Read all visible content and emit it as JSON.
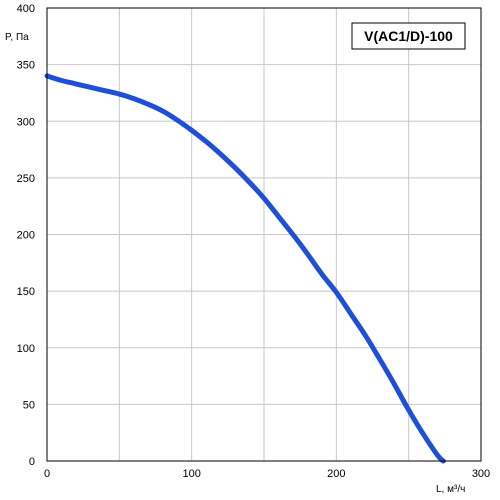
{
  "chart_data": {
    "type": "line",
    "title": "V(AC1/D)-100",
    "xlabel": "L, м³/ч",
    "ylabel": "P, Па",
    "xlim": [
      0,
      300
    ],
    "ylim": [
      0,
      400
    ],
    "x_ticks": [
      "0",
      "100",
      "200",
      "300"
    ],
    "y_ticks": [
      "0",
      "50",
      "100",
      "150",
      "200",
      "250",
      "300",
      "350",
      "400"
    ],
    "x_grid_step": 50,
    "grid": true,
    "series": [
      {
        "color": "#1f4fd6",
        "x": [
          0,
          10,
          20,
          30,
          40,
          50,
          60,
          70,
          80,
          90,
          100,
          110,
          120,
          130,
          140,
          150,
          160,
          170,
          180,
          190,
          200,
          210,
          220,
          230,
          240,
          250,
          260,
          270,
          274
        ],
        "y": [
          340,
          336,
          333,
          330,
          327,
          324,
          320,
          315,
          309,
          301,
          292,
          282,
          271,
          259,
          246,
          232,
          216,
          200,
          183,
          165,
          149,
          130,
          111,
          90,
          68,
          45,
          24,
          5,
          0
        ]
      }
    ]
  }
}
